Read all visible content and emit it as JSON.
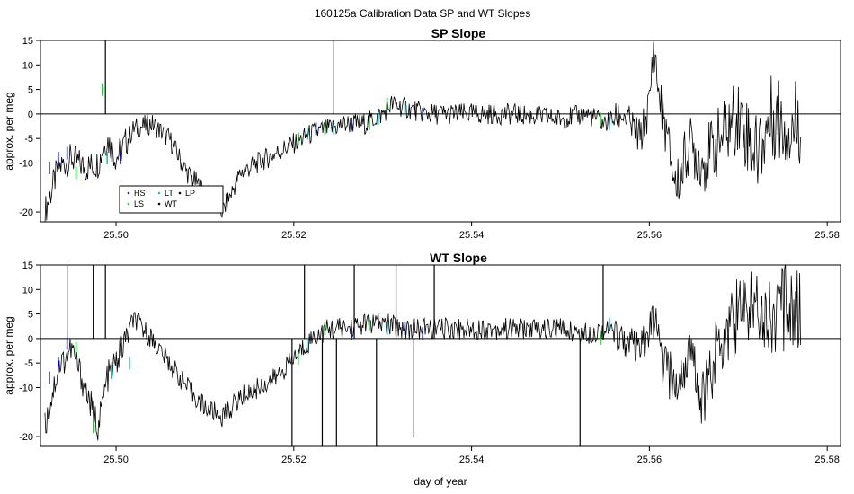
{
  "figure_title": "160125a   Calibration Data SP and WT Slopes",
  "colors": {
    "trace": "#000000",
    "HS": "#1a1ab8",
    "LS": "#22c83a",
    "LT": "#22c0c8",
    "WT": "#000000",
    "LP": "#000000"
  },
  "chart_data": [
    {
      "type": "line",
      "title": "SP Slope",
      "xlabel": "",
      "ylabel": "approx. per meg",
      "xlim": [
        25.4915,
        25.5815
      ],
      "ylim": [
        -22,
        15
      ],
      "yticks": [
        -20,
        -10,
        -5,
        0,
        5,
        10,
        15
      ],
      "xticks": [
        25.5,
        25.52,
        25.54,
        25.56,
        25.58
      ],
      "xtick_labels": [
        "25.50",
        "25.52",
        "25.54",
        "25.56",
        "25.58"
      ],
      "hline": 0,
      "legend": {
        "position": "lower-left",
        "entries": [
          {
            "label": "HS",
            "color": "#1a1ab8"
          },
          {
            "label": "LT",
            "color": "#22c0c8"
          },
          {
            "label": "LP",
            "color": "#000000"
          },
          {
            "label": "LS",
            "color": "#22c83a"
          },
          {
            "label": "WT",
            "color": "#000000"
          }
        ]
      },
      "x": [
        25.492,
        25.4935,
        25.495,
        25.4965,
        25.498,
        25.499,
        25.5,
        25.502,
        25.504,
        25.506,
        25.508,
        25.51,
        25.512,
        25.514,
        25.516,
        25.518,
        25.52,
        25.522,
        25.524,
        25.526,
        25.528,
        25.53,
        25.531,
        25.533,
        25.535,
        25.54,
        25.545,
        25.55,
        25.553,
        25.555,
        25.557,
        25.559,
        25.56,
        25.5605,
        25.561,
        25.562,
        25.563,
        25.5645,
        25.566,
        25.568,
        25.57,
        25.572,
        25.574,
        25.576,
        25.577
      ],
      "series": [
        {
          "values": [
            -20,
            -11,
            -9,
            -11,
            -10,
            -5,
            -9,
            -3,
            -2,
            -5,
            -12,
            -16,
            -20,
            -12,
            -10,
            -8,
            -6,
            -4,
            -3,
            -2,
            -2,
            0,
            2,
            1,
            0,
            0,
            0,
            -1,
            0,
            -2,
            0,
            -5,
            2,
            14,
            5,
            -5,
            -15,
            -6,
            -10,
            -5,
            0,
            -8,
            0,
            -3,
            0
          ],
          "markers": [
            {
              "series": "HS",
              "x": [
                25.4925,
                25.4935,
                25.4945,
                25.5005,
                25.5225,
                25.5265,
                25.5345
              ],
              "y": [
                -11,
                -9,
                -8,
                -9,
                -3,
                -2,
                0
              ]
            },
            {
              "series": "LS",
              "x": [
                25.4955,
                25.4985,
                25.5205,
                25.5235,
                25.5285,
                25.5305,
                25.5545
              ],
              "y": [
                -12,
                5,
                -5,
                -3,
                -2,
                2,
                -1
              ]
            },
            {
              "series": "LT",
              "x": [
                25.499,
                25.5215,
                25.5245,
                25.5295,
                25.5325,
                25.5555
              ],
              "y": [
                -9,
                -4,
                -3,
                -1,
                1,
                -2
              ]
            }
          ]
        }
      ],
      "spikes": [
        {
          "x": 25.4988,
          "y": 15
        },
        {
          "x": 25.5245,
          "y": 15
        }
      ]
    },
    {
      "type": "line",
      "title": "WT Slope",
      "xlabel": "day of year",
      "ylabel": "approx. per meg",
      "xlim": [
        25.4915,
        25.5815
      ],
      "ylim": [
        -22,
        15
      ],
      "yticks": [
        -20,
        -10,
        -5,
        0,
        5,
        10,
        15
      ],
      "xticks": [
        25.5,
        25.52,
        25.54,
        25.56,
        25.58
      ],
      "xtick_labels": [
        "25.50",
        "25.52",
        "25.54",
        "25.56",
        "25.58"
      ],
      "hline": 0,
      "x": [
        25.492,
        25.4935,
        25.495,
        25.4965,
        25.498,
        25.499,
        25.5,
        25.502,
        25.504,
        25.506,
        25.508,
        25.51,
        25.512,
        25.514,
        25.516,
        25.518,
        25.52,
        25.522,
        25.524,
        25.526,
        25.528,
        25.53,
        25.533,
        25.536,
        25.54,
        25.545,
        25.55,
        25.553,
        25.555,
        25.557,
        25.559,
        25.5605,
        25.5615,
        25.563,
        25.5645,
        25.566,
        25.568,
        25.57,
        25.572,
        25.574,
        25.576,
        25.577
      ],
      "series": [
        {
          "values": [
            -18,
            -6,
            -2,
            -10,
            -18,
            -8,
            -5,
            4,
            0,
            -5,
            -10,
            -14,
            -16,
            -12,
            -10,
            -8,
            -4,
            0,
            2,
            2,
            3,
            3,
            2,
            2,
            2,
            2,
            2,
            1,
            2,
            0,
            -3,
            4,
            -5,
            -10,
            -3,
            -12,
            0,
            5,
            8,
            4,
            8,
            5
          ],
          "markers": [
            {
              "series": "HS",
              "x": [
                25.4925,
                25.4935,
                25.4945,
                25.5265,
                25.5325,
                25.5345
              ],
              "y": [
                -8,
                -5,
                -1,
                1,
                2,
                1
              ]
            },
            {
              "series": "LS",
              "x": [
                25.4955,
                25.4975,
                25.5205,
                25.5235,
                25.5285,
                25.5545
              ],
              "y": [
                -2,
                -18,
                -4,
                2,
                3,
                0
              ]
            },
            {
              "series": "LT",
              "x": [
                25.4995,
                25.5015,
                25.5215,
                25.5305,
                25.5555
              ],
              "y": [
                -7,
                -5,
                -1,
                2,
                3
              ]
            }
          ]
        }
      ],
      "spikes": [
        {
          "x": 25.4945,
          "y": 15
        },
        {
          "x": 25.4975,
          "y": 15
        },
        {
          "x": 25.4988,
          "y": 15
        },
        {
          "x": 25.5198,
          "y": -22
        },
        {
          "x": 25.5212,
          "y": 15
        },
        {
          "x": 25.5232,
          "y": -22
        },
        {
          "x": 25.5248,
          "y": -22
        },
        {
          "x": 25.5268,
          "y": 15
        },
        {
          "x": 25.5293,
          "y": -22
        },
        {
          "x": 25.5315,
          "y": 15
        },
        {
          "x": 25.5335,
          "y": -20
        },
        {
          "x": 25.5358,
          "y": 15
        },
        {
          "x": 25.5522,
          "y": -22
        },
        {
          "x": 25.5548,
          "y": 15
        }
      ]
    }
  ]
}
